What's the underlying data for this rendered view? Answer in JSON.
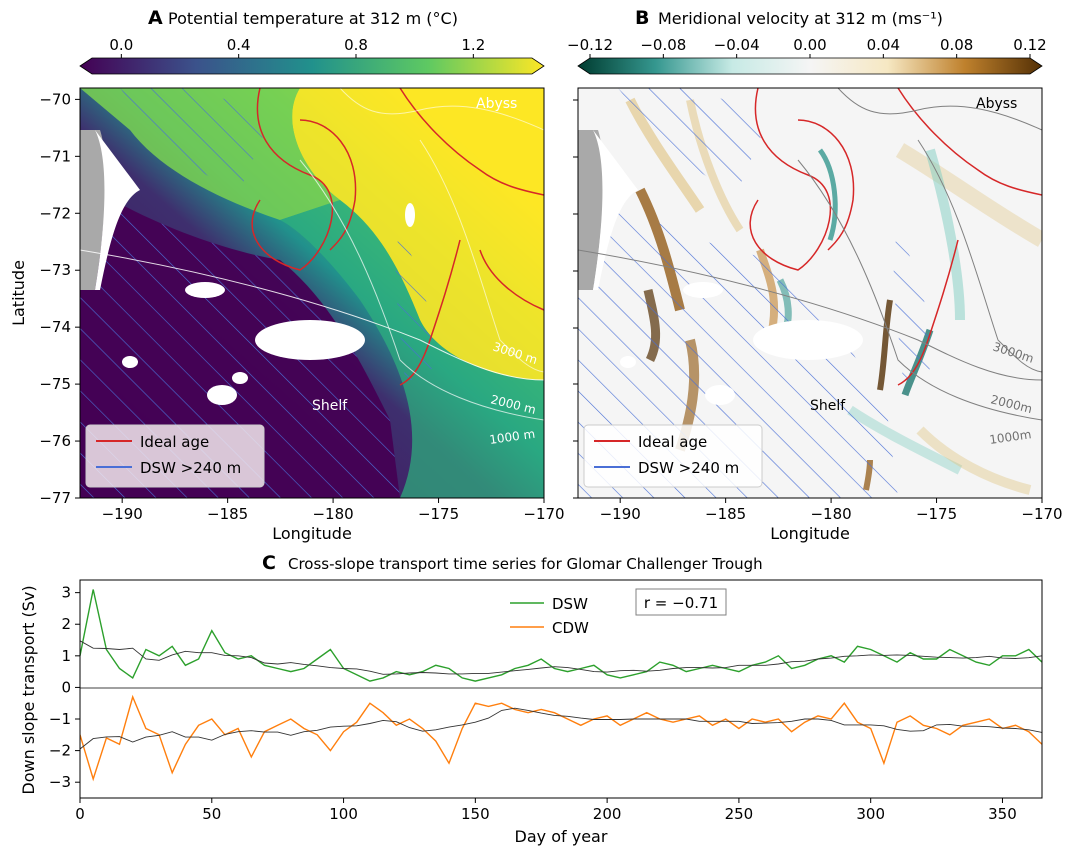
{
  "panel_a": {
    "letter": "A",
    "title": "Potential temperature at 312 m (°C)",
    "colorbar_ticks": [
      "0.0",
      "0.4",
      "0.8",
      "1.2"
    ],
    "colorbar_range": [
      -0.1,
      1.4
    ],
    "colormap": [
      "#440154",
      "#3b528b",
      "#21918c",
      "#5ec962",
      "#fde725"
    ],
    "labels": {
      "abyss": "Abyss",
      "shelf": "Shelf"
    },
    "contour_labels": [
      "3000 m",
      "2000 m",
      "1000 m"
    ],
    "legend": {
      "ideal_age": "Ideal age",
      "dsw": "DSW >240 m",
      "position": "lower-left"
    },
    "x_ticks": [
      "−190",
      "−185",
      "−180",
      "−175",
      "−170"
    ],
    "y_ticks": [
      "−70",
      "−71",
      "−72",
      "−73",
      "−74",
      "−75",
      "−76",
      "−77"
    ],
    "xlabel": "Longitude",
    "ylabel": "Latitude"
  },
  "panel_b": {
    "letter": "B",
    "title": "Meridional velocity at 312 m (ms⁻¹)",
    "colorbar_ticks": [
      "−0.12",
      "−0.08",
      "−0.04",
      "0.00",
      "0.04",
      "0.08",
      "0.12"
    ],
    "colorbar_range": [
      -0.12,
      0.12
    ],
    "colormap": [
      "#003c30",
      "#35978f",
      "#c7eae5",
      "#f5f5f5",
      "#f6e8c3",
      "#bf812d",
      "#543005"
    ],
    "labels": {
      "abyss": "Abyss",
      "shelf": "Shelf"
    },
    "contour_labels": [
      "3000m",
      "2000m",
      "1000m"
    ],
    "legend": {
      "ideal_age": "Ideal age",
      "dsw": "DSW >240 m",
      "position": "lower-left"
    },
    "x_ticks": [
      "−190",
      "−185",
      "−180",
      "−175",
      "−170"
    ],
    "xlabel": "Longitude"
  },
  "panel_c": {
    "letter": "C",
    "title": "Cross-slope transport time series for Glomar Challenger Trough",
    "xlabel": "Day of year",
    "ylabel": "Down slope transport (Sv)",
    "x_ticks": [
      "0",
      "50",
      "100",
      "150",
      "200",
      "250",
      "300",
      "350"
    ],
    "y_ticks": [
      "3",
      "2",
      "1",
      "0",
      "−1",
      "−2",
      "−3"
    ],
    "annotation": "r = −0.71",
    "legend": [
      "DSW",
      "CDW"
    ]
  },
  "colors": {
    "ideal_age": "#d62728",
    "dsw": "#4a6fd6",
    "dsw_series": "#2ca02c",
    "cdw_series": "#ff7f0e",
    "land": "#a9a9a9"
  },
  "chart_data": [
    {
      "type": "heatmap",
      "title": "Potential temperature at 312 m (°C)",
      "xlabel": "Longitude",
      "ylabel": "Latitude",
      "xlim": [
        -192,
        -170
      ],
      "ylim": [
        -77,
        -69.8
      ],
      "colorbar_range": [
        -0.1,
        1.4
      ],
      "legend": [
        "Ideal age",
        "DSW >240 m"
      ],
      "annotations": [
        "Abyss",
        "Shelf",
        "3000 m",
        "2000 m",
        "1000 m"
      ]
    },
    {
      "type": "heatmap",
      "title": "Meridional velocity at 312 m (ms⁻¹)",
      "xlabel": "Longitude",
      "xlim": [
        -192,
        -170
      ],
      "ylim": [
        -77,
        -69.8
      ],
      "colorbar_range": [
        -0.12,
        0.12
      ],
      "legend": [
        "Ideal age",
        "DSW >240 m"
      ],
      "annotations": [
        "Abyss",
        "Shelf",
        "3000m",
        "2000m",
        "1000m"
      ]
    },
    {
      "type": "line",
      "title": "Cross-slope transport time series for Glomar Challenger Trough",
      "xlabel": "Day of year",
      "ylabel": "Down slope transport (Sv)",
      "xlim": [
        0,
        365
      ],
      "ylim": [
        -3.5,
        3.4
      ],
      "x": [
        0,
        5,
        10,
        15,
        20,
        25,
        30,
        35,
        40,
        45,
        50,
        55,
        60,
        65,
        70,
        75,
        80,
        85,
        90,
        95,
        100,
        105,
        110,
        115,
        120,
        125,
        130,
        135,
        140,
        145,
        150,
        155,
        160,
        165,
        170,
        175,
        180,
        185,
        190,
        195,
        200,
        205,
        210,
        215,
        220,
        225,
        230,
        235,
        240,
        245,
        250,
        255,
        260,
        265,
        270,
        275,
        280,
        285,
        290,
        295,
        300,
        305,
        310,
        315,
        320,
        325,
        330,
        335,
        340,
        345,
        350,
        355,
        360,
        365
      ],
      "series": [
        {
          "name": "DSW",
          "values": [
            1.0,
            3.1,
            1.2,
            0.6,
            0.3,
            1.2,
            1.0,
            1.3,
            0.7,
            0.9,
            1.8,
            1.1,
            0.9,
            1.0,
            0.7,
            0.6,
            0.5,
            0.6,
            0.9,
            1.2,
            0.6,
            0.4,
            0.2,
            0.3,
            0.5,
            0.4,
            0.5,
            0.7,
            0.6,
            0.3,
            0.2,
            0.3,
            0.4,
            0.6,
            0.7,
            0.9,
            0.6,
            0.5,
            0.6,
            0.7,
            0.4,
            0.3,
            0.4,
            0.5,
            0.8,
            0.7,
            0.5,
            0.6,
            0.7,
            0.6,
            0.5,
            0.7,
            0.8,
            1.0,
            0.6,
            0.7,
            0.9,
            1.0,
            0.8,
            1.3,
            1.2,
            1.0,
            0.8,
            1.1,
            0.9,
            0.9,
            1.2,
            1.0,
            0.8,
            0.7,
            1.0,
            1.0,
            1.2,
            0.8
          ]
        },
        {
          "name": "CDW",
          "values": [
            -1.5,
            -2.9,
            -1.6,
            -1.8,
            -0.3,
            -1.3,
            -1.5,
            -2.7,
            -1.8,
            -1.2,
            -1.0,
            -1.5,
            -1.3,
            -2.2,
            -1.4,
            -1.2,
            -1.0,
            -1.3,
            -1.5,
            -2.0,
            -1.4,
            -1.1,
            -0.5,
            -0.8,
            -1.2,
            -1.0,
            -1.3,
            -1.7,
            -2.4,
            -1.3,
            -0.5,
            -0.6,
            -0.5,
            -0.7,
            -0.8,
            -0.7,
            -0.8,
            -1.0,
            -1.2,
            -1.0,
            -0.9,
            -1.2,
            -1.0,
            -0.8,
            -1.0,
            -1.1,
            -1.0,
            -0.9,
            -1.2,
            -1.0,
            -1.3,
            -1.0,
            -1.1,
            -1.0,
            -1.4,
            -1.1,
            -0.9,
            -1.0,
            -0.5,
            -1.1,
            -1.3,
            -2.4,
            -1.1,
            -0.9,
            -1.2,
            -1.3,
            -1.5,
            -1.2,
            -1.1,
            -1.0,
            -1.3,
            -1.2,
            -1.4,
            -1.8
          ]
        }
      ],
      "annotation": "r = −0.71"
    }
  ]
}
